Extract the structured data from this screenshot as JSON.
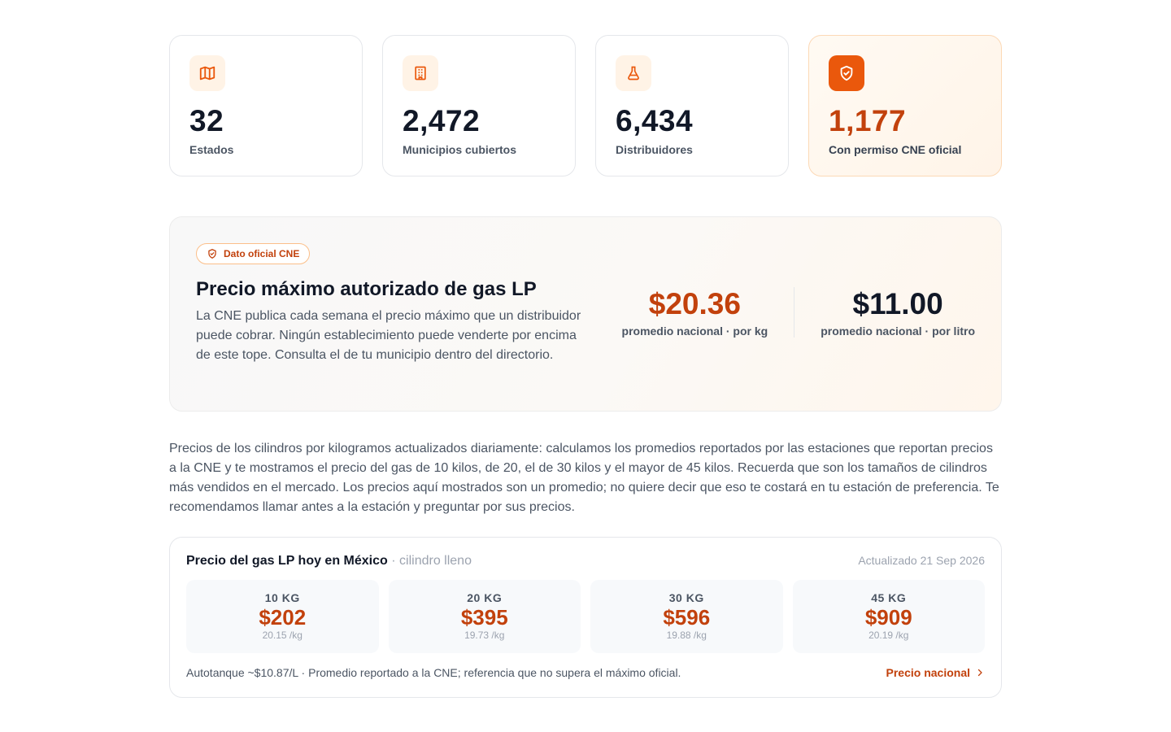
{
  "stats": [
    {
      "icon": "map-icon",
      "value": "32",
      "label": "Estados"
    },
    {
      "icon": "building-icon",
      "value": "2,472",
      "label": "Municipios cubiertos"
    },
    {
      "icon": "flask-icon",
      "value": "6,434",
      "label": "Distribuidores"
    },
    {
      "icon": "shield-check-icon",
      "value": "1,177",
      "label": "Con permiso CNE oficial"
    }
  ],
  "hero": {
    "badge": "Dato oficial CNE",
    "title": "Precio máximo autorizado de gas LP",
    "description": "La CNE publica cada semana el precio máximo que un distribuidor puede cobrar. Ningún establecimiento puede venderte por encima de este tope. Consulta el de tu municipio dentro del directorio.",
    "price_kg": {
      "value": "$20.36",
      "label": "promedio nacional · por kg"
    },
    "price_litro": {
      "value": "$11.00",
      "label": "promedio nacional · por litro"
    }
  },
  "intro_paragraph": "Precios de los cilindros por kilogramos actualizados diariamente: calculamos los promedios reportados por las estaciones que reportan precios a la CNE y te mostramos el precio del gas de 10 kilos, de 20, el de 30 kilos y el mayor de 45 kilos. Recuerda que son los tamaños de cilindros más vendidos en el mercado. Los precios aquí mostrados son un promedio; no quiere decir que eso te costará en tu estación de preferencia. Te recomendamos llamar antes a la estación y preguntar por sus precios.",
  "panel": {
    "title": "Precio del gas LP hoy en México",
    "subtitle": "· cilindro lleno",
    "updated": "Actualizado 21 Sep 2026",
    "cylinders": [
      {
        "size": "10 KG",
        "price": "$202",
        "per_kg": "20.15 /kg"
      },
      {
        "size": "20 KG",
        "price": "$395",
        "per_kg": "19.73 /kg"
      },
      {
        "size": "30 KG",
        "price": "$596",
        "per_kg": "19.88 /kg"
      },
      {
        "size": "45 KG",
        "price": "$909",
        "per_kg": "20.19 /kg"
      }
    ],
    "note": "Autotanque ~$10.87/L · Promedio reportado a la CNE; referencia que no supera el máximo oficial.",
    "link_label": "Precio nacional"
  },
  "colors": {
    "accent": "#c2410c",
    "accent_bg": "#ea580c",
    "text": "#111827",
    "muted": "#4b5563"
  }
}
